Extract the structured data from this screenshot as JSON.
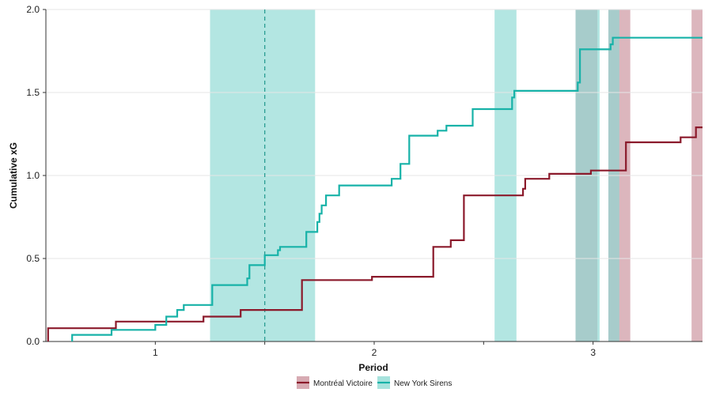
{
  "chart_data": {
    "type": "line",
    "step": true,
    "xlabel": "Period",
    "ylabel": "Cumulative xG",
    "xlim": [
      0.5,
      3.5
    ],
    "ylim": [
      0,
      2.0
    ],
    "x_ticks": [
      1,
      2,
      3
    ],
    "x_minor_ticks": [
      1.5,
      2.5
    ],
    "y_ticks": [
      0.0,
      0.5,
      1.0,
      1.5,
      2.0
    ],
    "y_tick_labels": [
      "0.0",
      "0.5",
      "1.0",
      "1.5",
      "2.0"
    ],
    "grid": "horizontal",
    "legend_position": "bottom",
    "vline_dashed": 1.5,
    "series": [
      {
        "name": "Montréal Victoire",
        "color": "#8b1a2b",
        "band_color": "#c98f99",
        "points": [
          [
            0.51,
            0.0
          ],
          [
            0.51,
            0.08
          ],
          [
            0.82,
            0.08
          ],
          [
            0.82,
            0.12
          ],
          [
            1.22,
            0.12
          ],
          [
            1.22,
            0.15
          ],
          [
            1.39,
            0.15
          ],
          [
            1.39,
            0.19
          ],
          [
            1.67,
            0.19
          ],
          [
            1.67,
            0.37
          ],
          [
            1.99,
            0.37
          ],
          [
            1.99,
            0.39
          ],
          [
            2.27,
            0.39
          ],
          [
            2.27,
            0.57
          ],
          [
            2.35,
            0.57
          ],
          [
            2.35,
            0.61
          ],
          [
            2.41,
            0.61
          ],
          [
            2.41,
            0.88
          ],
          [
            2.68,
            0.88
          ],
          [
            2.68,
            0.92
          ],
          [
            2.69,
            0.92
          ],
          [
            2.69,
            0.98
          ],
          [
            2.8,
            0.98
          ],
          [
            2.8,
            1.01
          ],
          [
            2.99,
            1.01
          ],
          [
            2.99,
            1.03
          ],
          [
            3.15,
            1.03
          ],
          [
            3.15,
            1.2
          ],
          [
            3.4,
            1.2
          ],
          [
            3.4,
            1.23
          ],
          [
            3.47,
            1.23
          ],
          [
            3.47,
            1.29
          ],
          [
            3.5,
            1.29
          ]
        ],
        "shaded_periods": [
          [
            2.92,
            3.02
          ],
          [
            3.07,
            3.17
          ],
          [
            3.45,
            3.55
          ]
        ]
      },
      {
        "name": "New York Sirens",
        "color": "#17b2a8",
        "band_color": "#8ad9d2",
        "points": [
          [
            0.62,
            0.0
          ],
          [
            0.62,
            0.04
          ],
          [
            0.8,
            0.04
          ],
          [
            0.8,
            0.07
          ],
          [
            1.0,
            0.07
          ],
          [
            1.0,
            0.1
          ],
          [
            1.05,
            0.1
          ],
          [
            1.05,
            0.15
          ],
          [
            1.1,
            0.15
          ],
          [
            1.1,
            0.19
          ],
          [
            1.13,
            0.19
          ],
          [
            1.13,
            0.22
          ],
          [
            1.26,
            0.22
          ],
          [
            1.26,
            0.34
          ],
          [
            1.42,
            0.34
          ],
          [
            1.42,
            0.38
          ],
          [
            1.43,
            0.38
          ],
          [
            1.43,
            0.46
          ],
          [
            1.5,
            0.46
          ],
          [
            1.5,
            0.52
          ],
          [
            1.56,
            0.52
          ],
          [
            1.56,
            0.55
          ],
          [
            1.57,
            0.55
          ],
          [
            1.57,
            0.57
          ],
          [
            1.69,
            0.57
          ],
          [
            1.69,
            0.66
          ],
          [
            1.74,
            0.66
          ],
          [
            1.74,
            0.72
          ],
          [
            1.75,
            0.72
          ],
          [
            1.75,
            0.77
          ],
          [
            1.76,
            0.77
          ],
          [
            1.76,
            0.82
          ],
          [
            1.78,
            0.82
          ],
          [
            1.78,
            0.88
          ],
          [
            1.84,
            0.88
          ],
          [
            1.84,
            0.94
          ],
          [
            2.08,
            0.94
          ],
          [
            2.08,
            0.98
          ],
          [
            2.12,
            0.98
          ],
          [
            2.12,
            1.07
          ],
          [
            2.16,
            1.07
          ],
          [
            2.16,
            1.24
          ],
          [
            2.29,
            1.24
          ],
          [
            2.29,
            1.27
          ],
          [
            2.33,
            1.27
          ],
          [
            2.33,
            1.3
          ],
          [
            2.45,
            1.3
          ],
          [
            2.45,
            1.4
          ],
          [
            2.63,
            1.4
          ],
          [
            2.63,
            1.47
          ],
          [
            2.64,
            1.47
          ],
          [
            2.64,
            1.51
          ],
          [
            2.93,
            1.51
          ],
          [
            2.93,
            1.56
          ],
          [
            2.94,
            1.56
          ],
          [
            2.94,
            1.76
          ],
          [
            3.08,
            1.76
          ],
          [
            3.08,
            1.79
          ],
          [
            3.09,
            1.79
          ],
          [
            3.09,
            1.83
          ],
          [
            3.5,
            1.83
          ]
        ],
        "shaded_periods": [
          [
            1.25,
            1.5
          ],
          [
            1.5,
            1.73
          ],
          [
            2.55,
            2.65
          ],
          [
            2.92,
            3.03
          ],
          [
            3.07,
            3.12
          ]
        ]
      }
    ]
  }
}
